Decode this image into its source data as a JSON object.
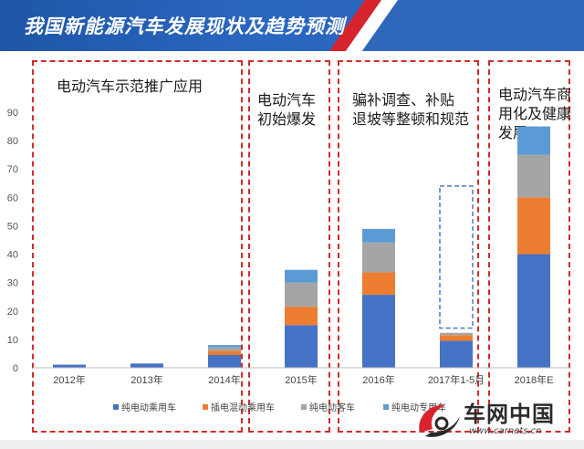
{
  "header": {
    "title": "我国新能源汽车发展现状及趋势预测"
  },
  "annotations": [
    {
      "text": "电动汽车示范推广应用"
    },
    {
      "text": "电动汽车\n初始爆发"
    },
    {
      "text": "骗补调查、补贴\n退坡等整顿和规范"
    },
    {
      "text": "电动汽车商\n用化及健康\n发展"
    }
  ],
  "logo": {
    "text": "车网中国",
    "url": "www.carnets.cn"
  },
  "colors": {
    "banner": "#2a67c1",
    "accent_red": "#d7232c",
    "dashed_box": "#d42a2a",
    "forecast_box": "#4a78c0"
  },
  "chart_data": {
    "type": "bar",
    "stacked": true,
    "categories": [
      "2012年",
      "2013年",
      "2014年",
      "2015年",
      "2016年",
      "2017年1-5月",
      "2018年E"
    ],
    "series": [
      {
        "name": "纯电动乘用车",
        "color": "#4472c4",
        "values": [
          1.1,
          1.5,
          4.5,
          15.0,
          25.7,
          9.5,
          40.0
        ]
      },
      {
        "name": "插电混动乘用车",
        "color": "#ed7d31",
        "values": [
          0,
          0,
          1.5,
          6.5,
          7.9,
          2.0,
          20.0
        ]
      },
      {
        "name": "纯电动客车",
        "color": "#a5a5a5",
        "values": [
          0,
          0,
          1.2,
          8.5,
          10.5,
          0.8,
          15.0
        ]
      },
      {
        "name": "纯电动专用车",
        "color": "#5b9bd5",
        "values": [
          0,
          0,
          0.8,
          4.5,
          4.8,
          0,
          10.0
        ]
      }
    ],
    "ylim": [
      0,
      90
    ],
    "yticks": [
      0,
      10,
      20,
      30,
      40,
      50,
      60,
      70,
      80,
      90
    ],
    "grid": false,
    "legend": "bottom",
    "forecast_box_range": [
      14,
      64
    ],
    "forecast_box_category": "2017年1-5月"
  }
}
